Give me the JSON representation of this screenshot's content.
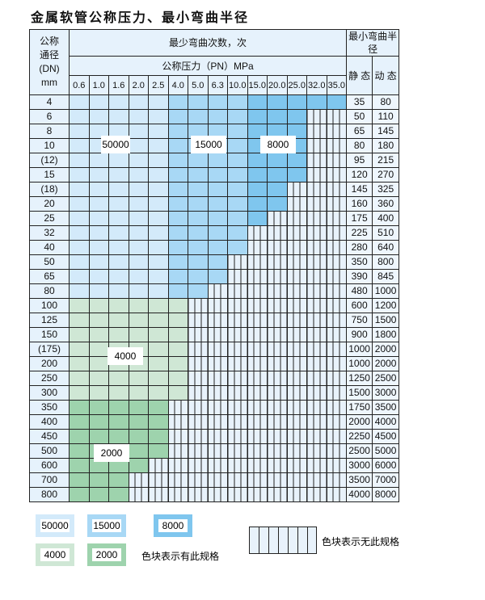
{
  "title": "金属软管公称压力、最小弯曲半径",
  "header": {
    "dn_label": [
      "公称",
      "通径",
      "(DN)",
      "mm"
    ],
    "cycles": "最少弯曲次数，次",
    "pressure": "公称压力（PN）MPa",
    "radius": "最小弯曲半径",
    "static": "静 态",
    "dynamic": "动 态",
    "pressures": [
      "0.6",
      "1.0",
      "1.6",
      "2.0",
      "2.5",
      "4.0",
      "5.0",
      "6.3",
      "10.0",
      "15.0",
      "20.0",
      "25.0",
      "32.0",
      "35.0"
    ]
  },
  "colors": {
    "blue_light": "#d3eafa",
    "blue_mid": "#a8d8f5",
    "blue_dark": "#7fc6ee",
    "green_light": "#cfe7d5",
    "green_dark": "#9ed3ad"
  },
  "rows": [
    {
      "dn": "4",
      "available": 14,
      "zone": "blue",
      "static": "35",
      "dynamic": "80"
    },
    {
      "dn": "6",
      "available": 12,
      "zone": "blue",
      "static": "50",
      "dynamic": "110"
    },
    {
      "dn": "8",
      "available": 12,
      "zone": "blue",
      "static": "65",
      "dynamic": "145"
    },
    {
      "dn": "10",
      "available": 12,
      "zone": "blue",
      "static": "80",
      "dynamic": "180"
    },
    {
      "dn": "(12)",
      "available": 12,
      "zone": "blue",
      "static": "95",
      "dynamic": "215"
    },
    {
      "dn": "15",
      "available": 12,
      "zone": "blue",
      "static": "120",
      "dynamic": "270"
    },
    {
      "dn": "(18)",
      "available": 11,
      "zone": "blue",
      "static": "145",
      "dynamic": "325"
    },
    {
      "dn": "20",
      "available": 11,
      "zone": "blue",
      "static": "160",
      "dynamic": "360"
    },
    {
      "dn": "25",
      "available": 10,
      "zone": "blue",
      "static": "175",
      "dynamic": "400"
    },
    {
      "dn": "32",
      "available": 9,
      "zone": "blue",
      "static": "225",
      "dynamic": "510"
    },
    {
      "dn": "40",
      "available": 9,
      "zone": "blue",
      "static": "280",
      "dynamic": "640"
    },
    {
      "dn": "50",
      "available": 8,
      "zone": "blue",
      "static": "350",
      "dynamic": "800"
    },
    {
      "dn": "65",
      "available": 8,
      "zone": "blue",
      "static": "390",
      "dynamic": "845"
    },
    {
      "dn": "80",
      "available": 7,
      "zone": "blue",
      "static": "480",
      "dynamic": "1000"
    },
    {
      "dn": "100",
      "available": 6,
      "zone": "green_light",
      "static": "600",
      "dynamic": "1200"
    },
    {
      "dn": "125",
      "available": 6,
      "zone": "green_light",
      "static": "750",
      "dynamic": "1500"
    },
    {
      "dn": "150",
      "available": 6,
      "zone": "green_light",
      "static": "900",
      "dynamic": "1800"
    },
    {
      "dn": "(175)",
      "available": 6,
      "zone": "green_light",
      "static": "1000",
      "dynamic": "2000"
    },
    {
      "dn": "200",
      "available": 6,
      "zone": "green_light",
      "static": "1000",
      "dynamic": "2000"
    },
    {
      "dn": "250",
      "available": 6,
      "zone": "green_light",
      "static": "1250",
      "dynamic": "2500"
    },
    {
      "dn": "300",
      "available": 6,
      "zone": "green_light",
      "static": "1500",
      "dynamic": "3000"
    },
    {
      "dn": "350",
      "available": 5,
      "zone": "green_dark",
      "static": "1750",
      "dynamic": "3500"
    },
    {
      "dn": "400",
      "available": 5,
      "zone": "green_dark",
      "static": "2000",
      "dynamic": "4000"
    },
    {
      "dn": "450",
      "available": 5,
      "zone": "green_dark",
      "static": "2250",
      "dynamic": "4500"
    },
    {
      "dn": "500",
      "available": 5,
      "zone": "green_dark",
      "static": "2500",
      "dynamic": "5000"
    },
    {
      "dn": "600",
      "available": 4,
      "zone": "green_dark",
      "static": "3000",
      "dynamic": "6000"
    },
    {
      "dn": "700",
      "available": 3,
      "zone": "green_dark",
      "static": "3500",
      "dynamic": "7000"
    },
    {
      "dn": "800",
      "available": 3,
      "zone": "green_dark",
      "static": "4000",
      "dynamic": "8000"
    }
  ],
  "zone_labels": {
    "z50000": "50000",
    "z15000": "15000",
    "z8000": "8000",
    "z4000": "4000",
    "z2000": "2000"
  },
  "legend": {
    "l50000": "50000",
    "l15000": "15000",
    "l8000": "8000",
    "l4000": "4000",
    "l2000": "2000",
    "has_spec": "色块表示有此规格",
    "no_spec": "色块表示无此规格"
  }
}
